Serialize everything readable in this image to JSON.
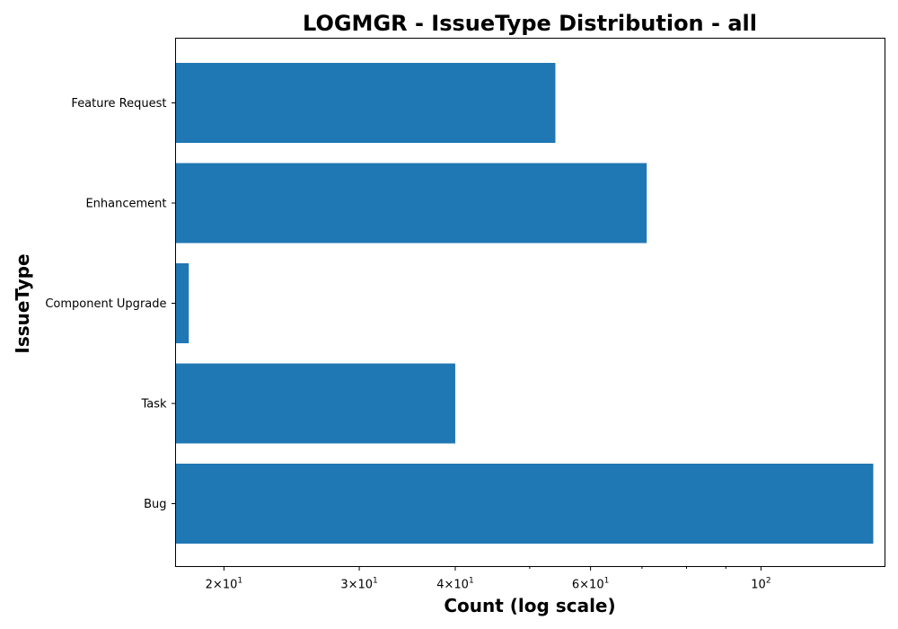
{
  "chart_data": {
    "type": "bar",
    "orientation": "horizontal",
    "title": "LOGMGR - IssueType Distribution - all",
    "xlabel": "Count (log scale)",
    "ylabel": "IssueType",
    "xscale": "log",
    "xlim": [
      17.3,
      145
    ],
    "categories": [
      "Bug",
      "Task",
      "Component Upgrade",
      "Enhancement",
      "Feature Request"
    ],
    "values": [
      140,
      40,
      18,
      71,
      54
    ],
    "x_ticks": [
      {
        "value": 20,
        "base": "2",
        "exp": "10",
        "sup": "1"
      },
      {
        "value": 30,
        "base": "3",
        "exp": "10",
        "sup": "1"
      },
      {
        "value": 40,
        "base": "4",
        "exp": "10",
        "sup": "1"
      },
      {
        "value": 60,
        "base": "6",
        "exp": "10",
        "sup": "1"
      },
      {
        "value": 100,
        "base": "",
        "exp": "10",
        "sup": "2"
      }
    ],
    "minor_ticks": [
      50,
      70,
      80,
      90
    ],
    "bar_color": "#1f77b4",
    "grid": false,
    "legend": "none"
  }
}
